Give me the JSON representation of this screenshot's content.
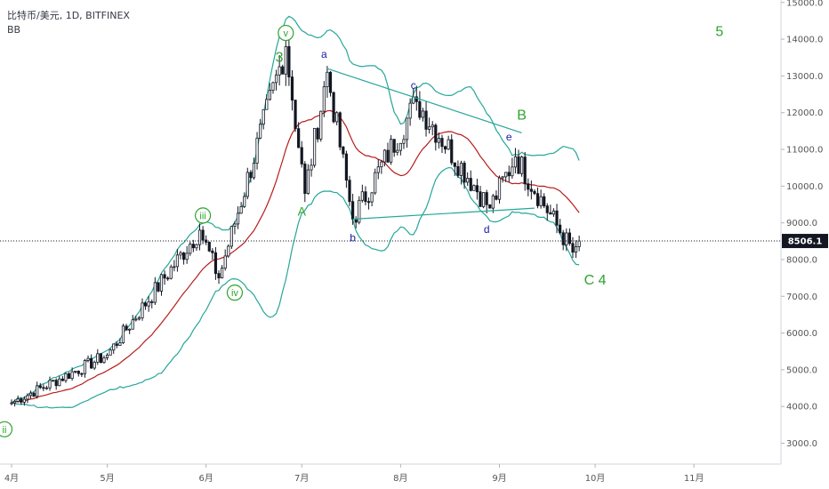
{
  "header": {
    "title": "比特币/美元, 1D, BITFINEX",
    "indicator": "BB"
  },
  "price_axis": {
    "labels": [
      "15000.0",
      "14000.0",
      "13000.0",
      "12000.0",
      "11000.0",
      "10000.0",
      "9000.0",
      "8000.0",
      "7000.0",
      "6000.0",
      "5000.0",
      "4000.0",
      "3000.0"
    ],
    "current_price": "8506.1"
  },
  "time_axis": {
    "labels": [
      "4月",
      "5月",
      "6月",
      "7月",
      "8月",
      "9月",
      "10月",
      "11月"
    ]
  },
  "colors": {
    "candle": "#131722",
    "bb_band": "#26a69a",
    "bb_basis": "#b71c1c",
    "wave_green": "#2ea32e",
    "wave_blue": "#1a1aa6",
    "trendline": "#26a69a"
  },
  "chart_data": {
    "type": "candlestick",
    "symbol": "比特币/美元",
    "interval": "1D",
    "exchange": "BITFINEX",
    "indicator": "BB",
    "ylim": [
      2500,
      15100
    ],
    "x_ticks": [
      "4月",
      "5月",
      "6月",
      "7月",
      "8月",
      "9月",
      "10月",
      "11月"
    ],
    "key_points": [
      {
        "date": "2019-04-01",
        "price": 4100
      },
      {
        "date": "2019-05-01",
        "price": 5400
      },
      {
        "date": "2019-05-30",
        "price": 8800
      },
      {
        "date": "2019-06-05",
        "price": 7500
      },
      {
        "date": "2019-06-26",
        "price": 13800
      },
      {
        "date": "2019-07-02",
        "price": 9800
      },
      {
        "date": "2019-07-09",
        "price": 13100
      },
      {
        "date": "2019-07-17",
        "price": 9100
      },
      {
        "date": "2019-08-06",
        "price": 12300
      },
      {
        "date": "2019-08-29",
        "price": 9400
      },
      {
        "date": "2019-09-06",
        "price": 10800
      },
      {
        "date": "2019-09-24",
        "price": 8200
      },
      {
        "date": "2019-09-26",
        "price": 8506.1
      }
    ],
    "current_price": 8506.1,
    "wave_labels": [
      "ii",
      "iii",
      "iv",
      "v",
      "3",
      "A",
      "a",
      "b",
      "c",
      "d",
      "e",
      "B",
      "C 4",
      "5"
    ]
  }
}
